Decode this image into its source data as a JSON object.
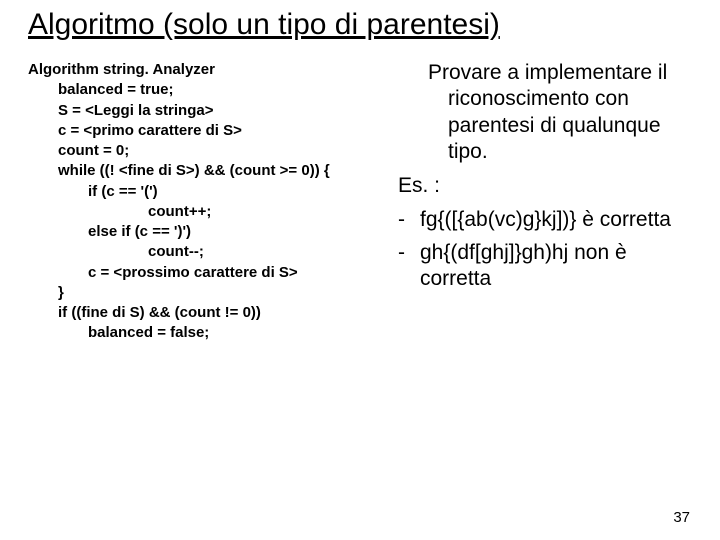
{
  "title": "Algoritmo (solo un tipo di parentesi)",
  "algo": {
    "l0": "Algorithm string. Analyzer",
    "l1": "balanced = true;",
    "l2": "S = <Leggi la stringa>",
    "l3": "c = <primo carattere di S>",
    "l4": "count = 0;",
    "l5": "while ((! <fine di S>) && (count >= 0)) {",
    "l6": "if (c == '(')",
    "l7": "count++;",
    "l8": "else if (c == ')')",
    "l9": "count--;",
    "l10": "c = <prossimo carattere di S>",
    "l11": "}",
    "l12": "if ((fine di S) && (count != 0))",
    "l13": "balanced = false;"
  },
  "right": {
    "p1": "Provare a implementare il riconoscimento con parentesi di qualunque tipo.",
    "p2": "Es. :",
    "b1": "fg{([{ab(vc)g}kj])} è corretta",
    "b2": "gh{(df[ghj]}gh)hj non è corretta",
    "dash": "-"
  },
  "page": "37"
}
